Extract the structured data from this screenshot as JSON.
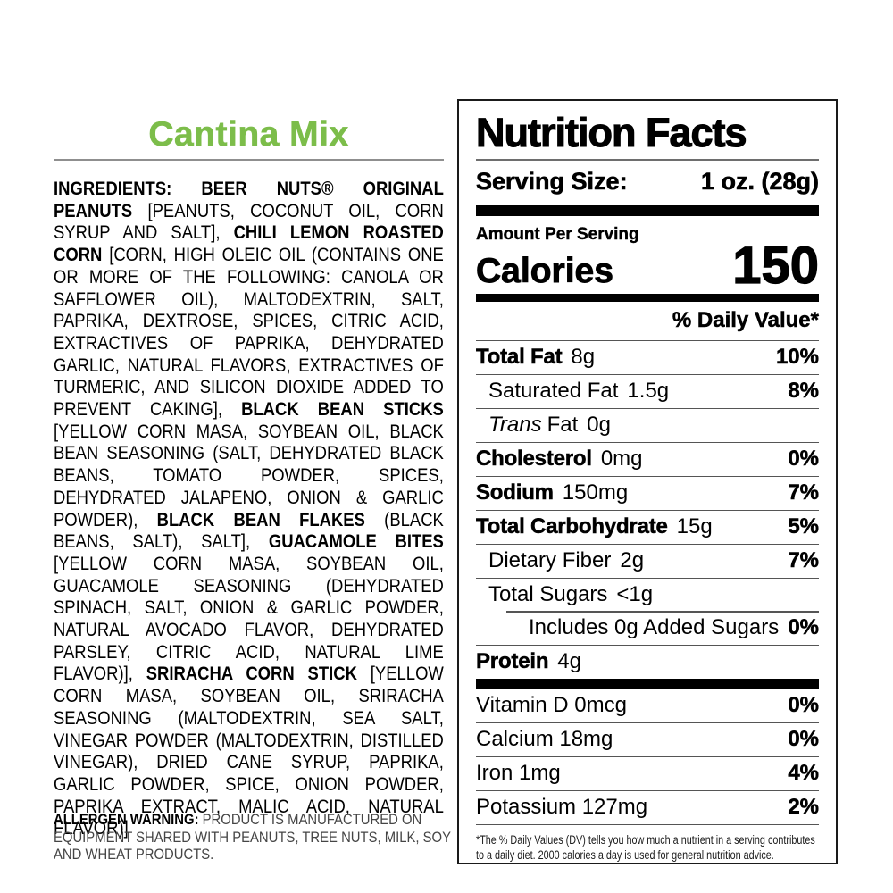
{
  "product": {
    "title": "Cantina Mix",
    "title_color": "#7cbd4a"
  },
  "ingredients": {
    "segments": [
      {
        "bold": true,
        "text": "INGREDIENTS: BEER NUTS® ORIGINAL PEANUTS "
      },
      {
        "bold": false,
        "text": "[PEANUTS, COCONUT OIL, CORN SYRUP AND SALT], "
      },
      {
        "bold": true,
        "text": "CHILI LEMON ROASTED CORN "
      },
      {
        "bold": false,
        "text": "[CORN, HIGH OLEIC OIL (CONTAINS ONE OR MORE OF THE FOLLOWING: CANOLA OR SAFFLOWER OIL), MALTODEXTRIN, SALT, PAPRIKA, DEXTROSE, SPICES, CITRIC ACID, EXTRACTIVES OF PAPRIKA, DEHYDRATED GARLIC, NATURAL FLAVORS, EXTRACTIVES OF TURMERIC, AND SILICON DIOXIDE ADDED TO PREVENT CAKING], "
      },
      {
        "bold": true,
        "text": "BLACK BEAN STICKS "
      },
      {
        "bold": false,
        "text": "[YELLOW CORN MASA, SOYBEAN OIL, BLACK BEAN SEASONING (SALT, DEHYDRATED BLACK BEANS, TOMATO POWDER, SPICES, DEHYDRATED JALAPENO, ONION & GARLIC POWDER), "
      },
      {
        "bold": true,
        "text": "BLACK BEAN FLAKES "
      },
      {
        "bold": false,
        "text": "(BLACK BEANS, SALT), SALT], "
      },
      {
        "bold": true,
        "text": "GUACAMOLE BITES "
      },
      {
        "bold": false,
        "text": "[YELLOW CORN MASA, SOYBEAN OIL, GUACAMOLE SEASONING (DEHYDRATED SPINACH, SALT, ONION & GARLIC POWDER, NATURAL AVOCADO FLAVOR, DEHYDRATED PARSLEY, CITRIC ACID, NATURAL LIME FLAVOR)], "
      },
      {
        "bold": true,
        "text": "SRIRACHA CORN STICK "
      },
      {
        "bold": false,
        "text": "[YELLOW CORN MASA, SOYBEAN OIL, SRIRACHA SEASONING (MALTODEXTRIN, SEA SALT, VINEGAR POWDER (MALTODEXTRIN, DISTILLED VINEGAR), DRIED CANE SYRUP, PAPRIKA, GARLIC POWDER, SPICE, ONION POWDER, PAPRIKA EXTRACT, MALIC ACID, NATURAL FLAVOR)]"
      }
    ]
  },
  "allergen": {
    "label": "ALLERGEN WARNING:",
    "text": " PRODUCT IS MANUFACTURED ON EQUIPMENT SHARED WITH PEANUTS, TREE NUTS, MILK, SOY AND WHEAT PRODUCTS."
  },
  "nutrition": {
    "title": "Nutrition Facts",
    "serving_label": "Serving Size:",
    "serving_value": "1 oz. (28g)",
    "amount_per_serving": "Amount Per Serving",
    "calories_label": "Calories",
    "calories_value": "150",
    "daily_value_header": "% Daily Value*",
    "rows": [
      {
        "bname": "Total Fat",
        "iname": "",
        "name": "",
        "amount": "8g",
        "dv": "10%"
      },
      {
        "bname": "",
        "iname": "",
        "name": "Saturated Fat",
        "amount": "1.5g",
        "dv": "8%"
      },
      {
        "bname": "",
        "iname": "Trans",
        "name": "Fat",
        "amount": "0g",
        "dv": ""
      },
      {
        "bname": "Cholesterol",
        "iname": "",
        "name": "",
        "amount": "0mg",
        "dv": "0%"
      },
      {
        "bname": "Sodium",
        "iname": "",
        "name": "",
        "amount": "150mg",
        "dv": "7%"
      },
      {
        "bname": "Total Carbohydrate",
        "iname": "",
        "name": "",
        "amount": "15g",
        "dv": "5%"
      },
      {
        "bname": "",
        "iname": "",
        "name": "Dietary Fiber",
        "amount": "2g",
        "dv": "7%"
      },
      {
        "bname": "",
        "iname": "",
        "name": "Total Sugars",
        "amount": "<1g",
        "dv": ""
      },
      {
        "bname": "",
        "iname": "",
        "name": "Includes 0g Added Sugars",
        "amount": "",
        "dv": "0%"
      },
      {
        "bname": "Protein",
        "iname": "",
        "name": "",
        "amount": "4g",
        "dv": ""
      }
    ],
    "vitamins": [
      {
        "label": "Vitamin D 0mcg",
        "dv": "0%"
      },
      {
        "label": "Calcium 18mg",
        "dv": "0%"
      },
      {
        "label": "Iron 1mg",
        "dv": "4%"
      },
      {
        "label": "Potassium 127mg",
        "dv": "2%"
      }
    ],
    "footnote": "*The % Daily Values (DV) tells you how much a nutrient in a serving contributes to a daily diet. 2000 calories a day is used for general nutrition advice."
  }
}
